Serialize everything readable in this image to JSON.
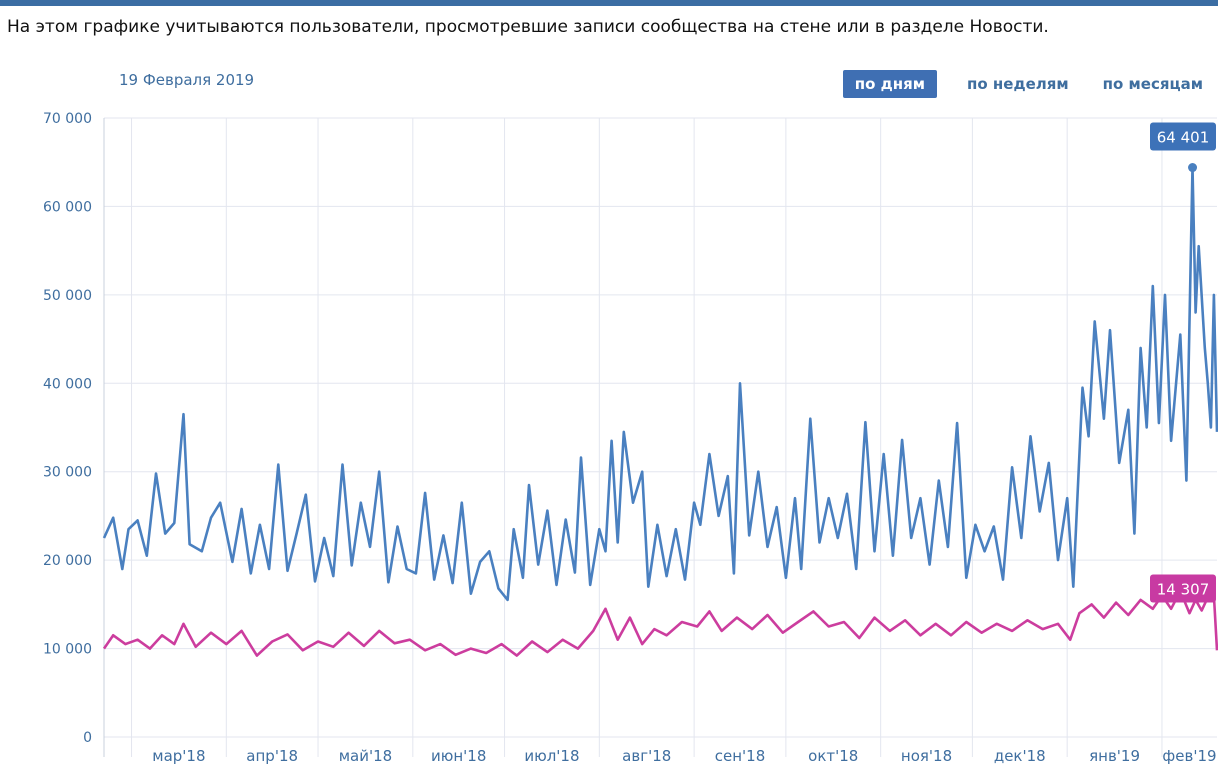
{
  "caption": "На этом графике учитываются пользователи, просмотревшие записи сообщества на стене или в разделе Новости.",
  "date_label": "19 Февраля 2019",
  "periods": [
    {
      "label": "по дням",
      "active": true
    },
    {
      "label": "по неделям",
      "active": false
    },
    {
      "label": "по месяцам",
      "active": false
    }
  ],
  "colors": {
    "series_a": "#4a80c0",
    "series_b": "#cc3d9e",
    "grid": "#e3e6ef",
    "axis_text": "#3f6e9f"
  },
  "chart_data": {
    "type": "line",
    "ylim": [
      0,
      70000
    ],
    "y_ticks": [
      {
        "value": 70000,
        "label": "70 000"
      },
      {
        "value": 60000,
        "label": "60 000"
      },
      {
        "value": 50000,
        "label": "50 000"
      },
      {
        "value": 40000,
        "label": "40 000"
      },
      {
        "value": 30000,
        "label": "30 000"
      },
      {
        "value": 20000,
        "label": "20 000"
      },
      {
        "value": 10000,
        "label": "10 000"
      },
      {
        "value": 0,
        "label": "0"
      }
    ],
    "x_range": [
      "2018-02-20",
      "2019-02-19"
    ],
    "x_ticks": [
      {
        "date": "2018-03-01",
        "label": "мар'18"
      },
      {
        "date": "2018-04-01",
        "label": "апр'18"
      },
      {
        "date": "2018-05-01",
        "label": "май'18"
      },
      {
        "date": "2018-06-01",
        "label": "июн'18"
      },
      {
        "date": "2018-07-01",
        "label": "июл'18"
      },
      {
        "date": "2018-08-01",
        "label": "авг'18"
      },
      {
        "date": "2018-09-01",
        "label": "сен'18"
      },
      {
        "date": "2018-10-01",
        "label": "окт'18"
      },
      {
        "date": "2018-11-01",
        "label": "ноя'18"
      },
      {
        "date": "2018-12-01",
        "label": "дек'18"
      },
      {
        "date": "2019-01-01",
        "label": "янв'19"
      },
      {
        "date": "2019-02-01",
        "label": "фев'19"
      }
    ],
    "grid": true,
    "series": [
      {
        "color": "#4a80c0",
        "points": [
          [
            "2018-02-20",
            22500
          ],
          [
            "2018-02-23",
            24800
          ],
          [
            "2018-02-26",
            19000
          ],
          [
            "2018-02-28",
            23500
          ],
          [
            "2018-03-03",
            24500
          ],
          [
            "2018-03-06",
            20500
          ],
          [
            "2018-03-09",
            29800
          ],
          [
            "2018-03-12",
            23000
          ],
          [
            "2018-03-15",
            24200
          ],
          [
            "2018-03-18",
            36500
          ],
          [
            "2018-03-20",
            21800
          ],
          [
            "2018-03-24",
            21000
          ],
          [
            "2018-03-27",
            24800
          ],
          [
            "2018-03-30",
            26500
          ],
          [
            "2018-04-03",
            19800
          ],
          [
            "2018-04-06",
            25800
          ],
          [
            "2018-04-09",
            18500
          ],
          [
            "2018-04-12",
            24000
          ],
          [
            "2018-04-15",
            19000
          ],
          [
            "2018-04-18",
            30800
          ],
          [
            "2018-04-21",
            18800
          ],
          [
            "2018-04-24",
            23000
          ],
          [
            "2018-04-27",
            27400
          ],
          [
            "2018-04-30",
            17600
          ],
          [
            "2018-05-03",
            22500
          ],
          [
            "2018-05-06",
            18200
          ],
          [
            "2018-05-09",
            30800
          ],
          [
            "2018-05-12",
            19400
          ],
          [
            "2018-05-15",
            26500
          ],
          [
            "2018-05-18",
            21500
          ],
          [
            "2018-05-21",
            30000
          ],
          [
            "2018-05-24",
            17500
          ],
          [
            "2018-05-27",
            23800
          ],
          [
            "2018-05-30",
            19000
          ],
          [
            "2018-06-02",
            18500
          ],
          [
            "2018-06-05",
            27600
          ],
          [
            "2018-06-08",
            17800
          ],
          [
            "2018-06-11",
            22800
          ],
          [
            "2018-06-14",
            17400
          ],
          [
            "2018-06-17",
            26500
          ],
          [
            "2018-06-20",
            16200
          ],
          [
            "2018-06-23",
            19800
          ],
          [
            "2018-06-26",
            21000
          ],
          [
            "2018-06-29",
            16800
          ],
          [
            "2018-07-02",
            15500
          ],
          [
            "2018-07-04",
            23500
          ],
          [
            "2018-07-07",
            18000
          ],
          [
            "2018-07-09",
            28500
          ],
          [
            "2018-07-12",
            19500
          ],
          [
            "2018-07-15",
            25600
          ],
          [
            "2018-07-18",
            17200
          ],
          [
            "2018-07-21",
            24600
          ],
          [
            "2018-07-24",
            18600
          ],
          [
            "2018-07-26",
            31600
          ],
          [
            "2018-07-29",
            17200
          ],
          [
            "2018-08-01",
            23500
          ],
          [
            "2018-08-03",
            21000
          ],
          [
            "2018-08-05",
            33500
          ],
          [
            "2018-08-07",
            22000
          ],
          [
            "2018-08-09",
            34500
          ],
          [
            "2018-08-12",
            26500
          ],
          [
            "2018-08-15",
            30000
          ],
          [
            "2018-08-17",
            17000
          ],
          [
            "2018-08-20",
            24000
          ],
          [
            "2018-08-23",
            18200
          ],
          [
            "2018-08-26",
            23500
          ],
          [
            "2018-08-29",
            17800
          ],
          [
            "2018-09-01",
            26500
          ],
          [
            "2018-09-03",
            24000
          ],
          [
            "2018-09-06",
            32000
          ],
          [
            "2018-09-09",
            25000
          ],
          [
            "2018-09-12",
            29500
          ],
          [
            "2018-09-14",
            18500
          ],
          [
            "2018-09-16",
            40000
          ],
          [
            "2018-09-19",
            22800
          ],
          [
            "2018-09-22",
            30000
          ],
          [
            "2018-09-25",
            21500
          ],
          [
            "2018-09-28",
            26000
          ],
          [
            "2018-10-01",
            18000
          ],
          [
            "2018-10-04",
            27000
          ],
          [
            "2018-10-06",
            19000
          ],
          [
            "2018-10-09",
            36000
          ],
          [
            "2018-10-12",
            22000
          ],
          [
            "2018-10-15",
            27000
          ],
          [
            "2018-10-18",
            22500
          ],
          [
            "2018-10-21",
            27500
          ],
          [
            "2018-10-24",
            19000
          ],
          [
            "2018-10-27",
            35600
          ],
          [
            "2018-10-30",
            21000
          ],
          [
            "2018-11-02",
            32000
          ],
          [
            "2018-11-05",
            20500
          ],
          [
            "2018-11-08",
            33600
          ],
          [
            "2018-11-11",
            22500
          ],
          [
            "2018-11-14",
            27000
          ],
          [
            "2018-11-17",
            19500
          ],
          [
            "2018-11-20",
            29000
          ],
          [
            "2018-11-23",
            21500
          ],
          [
            "2018-11-26",
            35500
          ],
          [
            "2018-11-29",
            18000
          ],
          [
            "2018-12-02",
            24000
          ],
          [
            "2018-12-05",
            21000
          ],
          [
            "2018-12-08",
            23800
          ],
          [
            "2018-12-11",
            17800
          ],
          [
            "2018-12-14",
            30500
          ],
          [
            "2018-12-17",
            22500
          ],
          [
            "2018-12-20",
            34000
          ],
          [
            "2018-12-23",
            25500
          ],
          [
            "2018-12-26",
            31000
          ],
          [
            "2018-12-29",
            20000
          ],
          [
            "2019-01-01",
            27000
          ],
          [
            "2019-01-03",
            17000
          ],
          [
            "2019-01-06",
            39500
          ],
          [
            "2019-01-08",
            34000
          ],
          [
            "2019-01-10",
            47000
          ],
          [
            "2019-01-13",
            36000
          ],
          [
            "2019-01-15",
            46000
          ],
          [
            "2019-01-18",
            31000
          ],
          [
            "2019-01-21",
            37000
          ],
          [
            "2019-01-23",
            23000
          ],
          [
            "2019-01-25",
            44000
          ],
          [
            "2019-01-27",
            35000
          ],
          [
            "2019-01-29",
            51000
          ],
          [
            "2019-01-31",
            35500
          ],
          [
            "2019-02-02",
            50000
          ],
          [
            "2019-02-04",
            33500
          ],
          [
            "2019-02-07",
            45500
          ],
          [
            "2019-02-09",
            29000
          ],
          [
            "2019-02-11",
            64401
          ],
          [
            "2019-02-12",
            48000
          ],
          [
            "2019-02-13",
            55500
          ],
          [
            "2019-02-15",
            44000
          ],
          [
            "2019-02-16",
            40000
          ],
          [
            "2019-02-17",
            35000
          ],
          [
            "2019-02-18",
            50000
          ],
          [
            "2019-02-19",
            34500
          ]
        ],
        "highlight": {
          "date": "2019-02-11",
          "value": 64401,
          "label": "64 401"
        }
      },
      {
        "color": "#cc3d9e",
        "points": [
          [
            "2018-02-20",
            10000
          ],
          [
            "2018-02-23",
            11500
          ],
          [
            "2018-02-27",
            10500
          ],
          [
            "2018-03-03",
            11000
          ],
          [
            "2018-03-07",
            10000
          ],
          [
            "2018-03-11",
            11500
          ],
          [
            "2018-03-15",
            10500
          ],
          [
            "2018-03-18",
            12800
          ],
          [
            "2018-03-22",
            10200
          ],
          [
            "2018-03-27",
            11800
          ],
          [
            "2018-04-01",
            10500
          ],
          [
            "2018-04-06",
            12000
          ],
          [
            "2018-04-11",
            9200
          ],
          [
            "2018-04-16",
            10800
          ],
          [
            "2018-04-21",
            11600
          ],
          [
            "2018-04-26",
            9800
          ],
          [
            "2018-05-01",
            10800
          ],
          [
            "2018-05-06",
            10200
          ],
          [
            "2018-05-11",
            11800
          ],
          [
            "2018-05-16",
            10300
          ],
          [
            "2018-05-21",
            12000
          ],
          [
            "2018-05-26",
            10600
          ],
          [
            "2018-05-31",
            11000
          ],
          [
            "2018-06-05",
            9800
          ],
          [
            "2018-06-10",
            10500
          ],
          [
            "2018-06-15",
            9300
          ],
          [
            "2018-06-20",
            10000
          ],
          [
            "2018-06-25",
            9500
          ],
          [
            "2018-06-30",
            10500
          ],
          [
            "2018-07-05",
            9200
          ],
          [
            "2018-07-10",
            10800
          ],
          [
            "2018-07-15",
            9600
          ],
          [
            "2018-07-20",
            11000
          ],
          [
            "2018-07-25",
            10000
          ],
          [
            "2018-07-30",
            12000
          ],
          [
            "2018-08-03",
            14500
          ],
          [
            "2018-08-07",
            11000
          ],
          [
            "2018-08-11",
            13500
          ],
          [
            "2018-08-15",
            10500
          ],
          [
            "2018-08-19",
            12200
          ],
          [
            "2018-08-23",
            11500
          ],
          [
            "2018-08-28",
            13000
          ],
          [
            "2018-09-02",
            12500
          ],
          [
            "2018-09-06",
            14200
          ],
          [
            "2018-09-10",
            12000
          ],
          [
            "2018-09-15",
            13500
          ],
          [
            "2018-09-20",
            12200
          ],
          [
            "2018-09-25",
            13800
          ],
          [
            "2018-09-30",
            11800
          ],
          [
            "2018-10-05",
            13000
          ],
          [
            "2018-10-10",
            14200
          ],
          [
            "2018-10-15",
            12500
          ],
          [
            "2018-10-20",
            13000
          ],
          [
            "2018-10-25",
            11200
          ],
          [
            "2018-10-30",
            13500
          ],
          [
            "2018-11-04",
            12000
          ],
          [
            "2018-11-09",
            13200
          ],
          [
            "2018-11-14",
            11500
          ],
          [
            "2018-11-19",
            12800
          ],
          [
            "2018-11-24",
            11500
          ],
          [
            "2018-11-29",
            13000
          ],
          [
            "2018-12-04",
            11800
          ],
          [
            "2018-12-09",
            12800
          ],
          [
            "2018-12-14",
            12000
          ],
          [
            "2018-12-19",
            13200
          ],
          [
            "2018-12-24",
            12200
          ],
          [
            "2018-12-29",
            12800
          ],
          [
            "2019-01-02",
            11000
          ],
          [
            "2019-01-05",
            14000
          ],
          [
            "2019-01-09",
            15000
          ],
          [
            "2019-01-13",
            13500
          ],
          [
            "2019-01-17",
            15200
          ],
          [
            "2019-01-21",
            13800
          ],
          [
            "2019-01-25",
            15500
          ],
          [
            "2019-01-29",
            14500
          ],
          [
            "2019-02-01",
            16000
          ],
          [
            "2019-02-04",
            14500
          ],
          [
            "2019-02-07",
            16500
          ],
          [
            "2019-02-10",
            14000
          ],
          [
            "2019-02-12",
            15500
          ],
          [
            "2019-02-14",
            14307
          ],
          [
            "2019-02-16",
            15800
          ],
          [
            "2019-02-18",
            16000
          ],
          [
            "2019-02-19",
            9800
          ]
        ],
        "highlight": {
          "date": "2019-02-14",
          "value": 14307,
          "label": "14 307"
        }
      }
    ]
  }
}
